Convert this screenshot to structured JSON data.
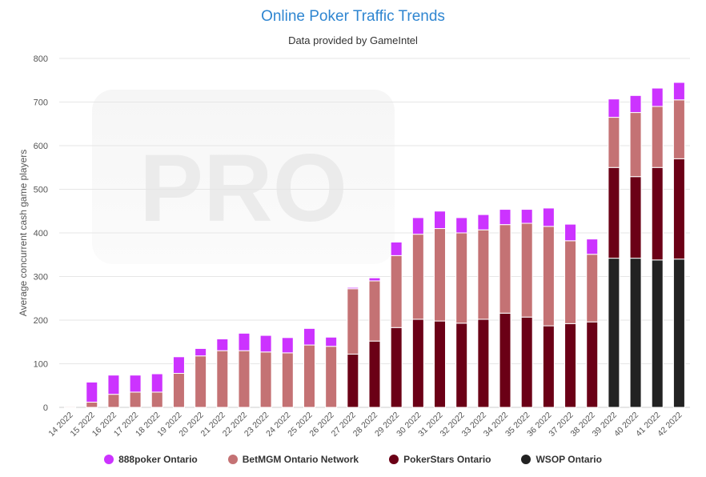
{
  "header": {
    "title": "Online Poker Traffic Trends",
    "subtitle": "Data provided by GameIntel"
  },
  "watermark": "PRO",
  "chart_data": {
    "type": "bar",
    "stacked": true,
    "title": "Online Poker Traffic Trends",
    "subtitle": "Data provided by GameIntel",
    "xlabel": "",
    "ylabel": "Average concurrent cash game players",
    "ylim": [
      0,
      800
    ],
    "yticks": [
      0,
      100,
      200,
      300,
      400,
      500,
      600,
      700,
      800
    ],
    "grid": true,
    "legend_position": "bottom",
    "categories": [
      "14 2022",
      "15 2022",
      "16 2022",
      "17 2022",
      "18 2022",
      "19 2022",
      "20 2022",
      "21 2022",
      "22 2022",
      "23 2022",
      "24 2022",
      "25 2022",
      "26 2022",
      "27 2022",
      "28 2022",
      "29 2022",
      "30 2022",
      "31 2022",
      "32 2022",
      "33 2022",
      "34 2022",
      "35 2022",
      "36 2022",
      "37 2022",
      "38 2022",
      "39 2022",
      "40 2022",
      "41 2022",
      "42 2022"
    ],
    "series": [
      {
        "name": "WSOP Ontario",
        "color": "#222222",
        "values": [
          0,
          0,
          0,
          0,
          0,
          0,
          0,
          0,
          0,
          0,
          0,
          0,
          0,
          0,
          0,
          0,
          0,
          0,
          0,
          0,
          0,
          0,
          0,
          0,
          0,
          342,
          342,
          338,
          340
        ]
      },
      {
        "name": "PokerStars Ontario",
        "color": "#6b0016",
        "values": [
          0,
          0,
          0,
          0,
          0,
          0,
          0,
          0,
          0,
          0,
          0,
          0,
          0,
          122,
          152,
          183,
          202,
          198,
          193,
          202,
          216,
          207,
          187,
          192,
          196,
          208,
          187,
          212,
          230
        ]
      },
      {
        "name": "BetMGM Ontario Network",
        "color": "#c47274",
        "values": [
          2,
          12,
          30,
          35,
          35,
          78,
          118,
          130,
          130,
          127,
          125,
          143,
          140,
          150,
          138,
          165,
          195,
          212,
          207,
          205,
          203,
          215,
          228,
          190,
          155,
          115,
          147,
          140,
          135
        ]
      },
      {
        "name": "888poker Ontario",
        "color": "#cc33ff",
        "values": [
          0,
          46,
          44,
          39,
          42,
          38,
          17,
          27,
          40,
          38,
          35,
          38,
          21,
          3,
          7,
          31,
          38,
          40,
          35,
          35,
          35,
          32,
          42,
          38,
          35,
          42,
          39,
          42,
          40
        ]
      }
    ],
    "legend_order": [
      "888poker Ontario",
      "BetMGM Ontario Network",
      "PokerStars Ontario",
      "WSOP Ontario"
    ]
  }
}
